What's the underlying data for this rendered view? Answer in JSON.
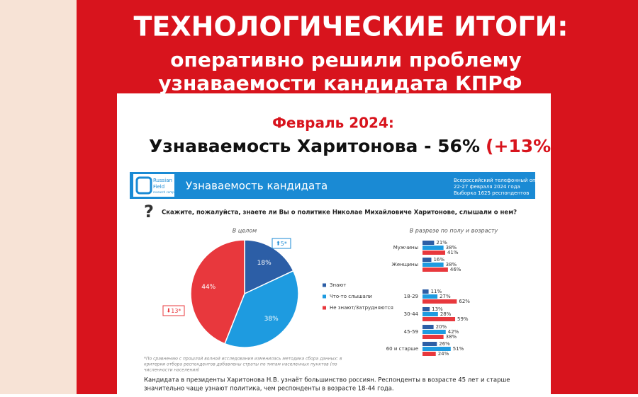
{
  "header": {
    "lines": [
      "ТЕХНОЛОГИЧЕСКИЕ ИТОГИ:",
      "оперативно решили проблему",
      "узнаваемости кандидата КПРФ"
    ]
  },
  "card": {
    "period": "Февраль 2024:",
    "headline": "Узнаваемость Харитонова - 56%",
    "change": "(+13%)"
  },
  "slide": {
    "logo": [
      "Russian",
      "Field",
      "research company"
    ],
    "title": "Узнаваемость кандидата",
    "meta": [
      "Всероссийский телефонный опрос",
      "22-27 февраля 2024 года",
      "Выборка 1625 респондентов"
    ],
    "question_mark": "?",
    "question": "Скажите, пожалуйста, знаете ли Вы о политике Николае Михайловиче Харитонове, слышали о нем?",
    "badges": [
      "5*",
      "13*"
    ],
    "footnote": [
      "*По сравнению с прошлой волной исследования изменилась методика сбора данных: в",
      "критерии отбора респондентов добавлены страты по типам населенных пунктов (по",
      "численности населения)"
    ],
    "conclusion": [
      "Кандидата в президенты Харитонова Н.В. узнаёт большинство россиян. Респонденты в возрасте 45 лет и старше",
      "значительно чаще узнают политика, чем респонденты в возрасте 18-44 года."
    ]
  },
  "chart_data": [
    {
      "type": "pie",
      "title": "В целом",
      "categories": [
        "Знают",
        "Что-то слышали",
        "Не знают/Затрудняются"
      ],
      "values": [
        18,
        38,
        44
      ],
      "value_labels": [
        "18%",
        "38%",
        "44%"
      ],
      "colors": [
        "#2c5ea6",
        "#1e9be0",
        "#e8383d"
      ]
    },
    {
      "type": "hbar",
      "title": "В разрезе по полу и возрасту",
      "categories": [
        "Мужчины",
        "Женщины",
        "18-29",
        "30-44",
        "45-59",
        "60 и старше"
      ],
      "xlim": [
        0,
        100
      ],
      "series": [
        {
          "color": "#2c5ea6",
          "values": [
            21,
            16,
            11,
            13,
            20,
            26
          ],
          "value_labels": [
            "21%",
            "16%",
            "11%",
            "13%",
            "20%",
            "26%"
          ]
        },
        {
          "color": "#1e9be0",
          "values": [
            38,
            38,
            27,
            28,
            42,
            51
          ],
          "value_labels": [
            "38%",
            "38%",
            "27%",
            "28%",
            "42%",
            "51%"
          ]
        },
        {
          "color": "#e8383d",
          "values": [
            41,
            46,
            62,
            59,
            38,
            24
          ],
          "value_labels": [
            "41%",
            "46%",
            "62%",
            "59%",
            "38%",
            "24%"
          ]
        }
      ]
    }
  ]
}
